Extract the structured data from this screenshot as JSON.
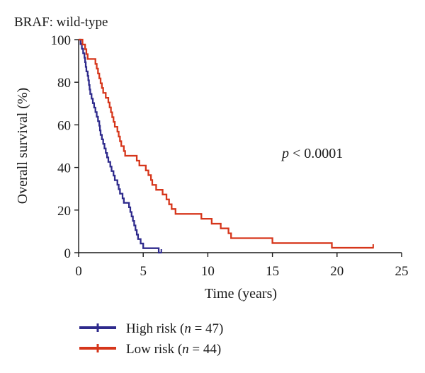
{
  "chart_data": {
    "type": "line",
    "subtype": "kaplan-meier step",
    "title": "BRAF: wild-type",
    "xlabel": "Time (years)",
    "ylabel": "Overall survival (%)",
    "xlim": [
      0,
      25
    ],
    "ylim": [
      0,
      100
    ],
    "x_ticks": [
      "0",
      "5",
      "10",
      "15",
      "20",
      "25"
    ],
    "y_ticks": [
      "0",
      "20",
      "40",
      "60",
      "80",
      "100"
    ],
    "grid": false,
    "legend_position": "bottom-left",
    "annotation": {
      "italic": "p",
      "text": " < 0.0001"
    },
    "series": [
      {
        "name": "High risk",
        "n_label": "47",
        "color": "#2e2a8c",
        "points": [
          [
            0,
            100
          ],
          [
            0.15,
            97.9
          ],
          [
            0.25,
            95.7
          ],
          [
            0.35,
            93.6
          ],
          [
            0.45,
            91.5
          ],
          [
            0.5,
            89.4
          ],
          [
            0.55,
            87.2
          ],
          [
            0.6,
            85.1
          ],
          [
            0.7,
            83
          ],
          [
            0.75,
            80.9
          ],
          [
            0.8,
            78.7
          ],
          [
            0.85,
            76.6
          ],
          [
            0.9,
            74.5
          ],
          [
            1.0,
            72.3
          ],
          [
            1.1,
            70.2
          ],
          [
            1.2,
            68.1
          ],
          [
            1.3,
            66
          ],
          [
            1.4,
            63.8
          ],
          [
            1.5,
            61.7
          ],
          [
            1.6,
            59.6
          ],
          [
            1.65,
            57.4
          ],
          [
            1.7,
            55.3
          ],
          [
            1.8,
            53.2
          ],
          [
            1.9,
            51.1
          ],
          [
            2.0,
            48.9
          ],
          [
            2.1,
            46.8
          ],
          [
            2.2,
            44.7
          ],
          [
            2.3,
            42.6
          ],
          [
            2.45,
            40.4
          ],
          [
            2.55,
            38.3
          ],
          [
            2.7,
            36.2
          ],
          [
            2.8,
            34
          ],
          [
            3.0,
            31.9
          ],
          [
            3.1,
            29.8
          ],
          [
            3.2,
            27.7
          ],
          [
            3.4,
            25.5
          ],
          [
            3.5,
            23.4
          ],
          [
            3.9,
            21.3
          ],
          [
            4.0,
            19.1
          ],
          [
            4.1,
            17
          ],
          [
            4.2,
            14.9
          ],
          [
            4.3,
            12.8
          ],
          [
            4.4,
            10.6
          ],
          [
            4.5,
            8.5
          ],
          [
            4.6,
            6.4
          ],
          [
            4.8,
            4.3
          ],
          [
            5.0,
            2.1
          ],
          [
            6.2,
            0
          ]
        ],
        "end_x": 6.4
      },
      {
        "name": "Low risk",
        "n_label": "44",
        "color": "#d6361b",
        "points": [
          [
            0,
            100
          ],
          [
            0.3,
            97.7
          ],
          [
            0.5,
            95.5
          ],
          [
            0.6,
            93.2
          ],
          [
            0.7,
            90.9
          ],
          [
            1.3,
            88.6
          ],
          [
            1.4,
            86.4
          ],
          [
            1.5,
            84.1
          ],
          [
            1.6,
            81.8
          ],
          [
            1.7,
            79.5
          ],
          [
            1.8,
            77.3
          ],
          [
            1.9,
            75
          ],
          [
            2.1,
            72.7
          ],
          [
            2.3,
            70.5
          ],
          [
            2.4,
            68.2
          ],
          [
            2.5,
            65.9
          ],
          [
            2.6,
            63.6
          ],
          [
            2.7,
            61.4
          ],
          [
            2.8,
            59.1
          ],
          [
            3.0,
            56.8
          ],
          [
            3.1,
            54.5
          ],
          [
            3.2,
            52.3
          ],
          [
            3.3,
            50
          ],
          [
            3.5,
            47.7
          ],
          [
            3.6,
            45.5
          ],
          [
            4.5,
            43.2
          ],
          [
            4.7,
            40.9
          ],
          [
            5.2,
            38.6
          ],
          [
            5.4,
            36.4
          ],
          [
            5.6,
            34.1
          ],
          [
            5.7,
            31.8
          ],
          [
            6.0,
            29.5
          ],
          [
            6.5,
            27.3
          ],
          [
            6.8,
            25
          ],
          [
            7.0,
            22.7
          ],
          [
            7.2,
            20.5
          ],
          [
            7.5,
            18.2
          ],
          [
            9.5,
            15.9
          ],
          [
            10.3,
            13.6
          ],
          [
            11.0,
            11.4
          ],
          [
            11.6,
            9.1
          ],
          [
            11.8,
            6.8
          ],
          [
            15.0,
            4.5
          ],
          [
            19.6,
            2.3
          ]
        ],
        "end_x": 22.8
      }
    ]
  }
}
